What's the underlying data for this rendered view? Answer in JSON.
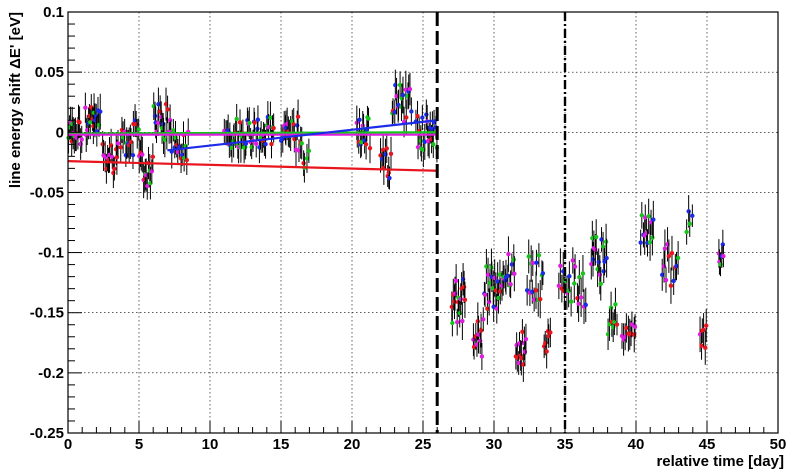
{
  "chart_data": {
    "type": "scatter",
    "title": "",
    "xlabel": "relative time [day]",
    "ylabel": "line energy shift ΔE' [eV]",
    "xlim": [
      0,
      50
    ],
    "ylim": [
      -0.25,
      0.1
    ],
    "x_ticks": [
      0,
      5,
      10,
      15,
      20,
      25,
      30,
      35,
      40,
      45,
      50
    ],
    "y_ticks": [
      -0.25,
      -0.2,
      -0.15,
      -0.1,
      -0.05,
      0,
      0.05,
      0.1
    ],
    "x_tick_labels": [
      "0",
      "5",
      "10",
      "15",
      "20",
      "25",
      "30",
      "35",
      "40",
      "45",
      "50"
    ],
    "y_tick_labels": [
      "-0.25",
      "-0.2",
      "-0.15",
      "-0.1",
      "-0.05",
      "0",
      "0.05",
      "0.1"
    ],
    "grid": true,
    "legend": "none",
    "series_colors": {
      "red": "#e8141e",
      "green": "#16c41c",
      "blue": "#1b2be8",
      "magenta": "#e01be0",
      "errorbar": "#000000"
    },
    "vertical_lines": [
      {
        "x": 26.0,
        "style": "dashed"
      },
      {
        "x": 35.0,
        "style": "dash-dot"
      }
    ],
    "fit_lines": [
      {
        "color": "red",
        "x": [
          0,
          26
        ],
        "y": [
          -0.024,
          -0.032
        ]
      },
      {
        "color": "green",
        "x": [
          0,
          26
        ],
        "y": [
          -0.001,
          0.0
        ]
      },
      {
        "color": "magenta",
        "x": [
          0,
          26
        ],
        "y": [
          -0.002,
          -0.002
        ]
      },
      {
        "color": "blue",
        "x": [
          7,
          26
        ],
        "y": [
          -0.015,
          0.01
        ]
      }
    ],
    "clusters": [
      {
        "x": [
          0.0,
          1.0
        ],
        "y": 0.0,
        "spread": 0.012,
        "err": 0.012,
        "n": 14,
        "colors": [
          "red",
          "magenta",
          "green"
        ]
      },
      {
        "x": [
          1.2,
          2.3
        ],
        "y": 0.008,
        "spread": 0.014,
        "err": 0.013,
        "n": 16,
        "colors": [
          "magenta",
          "green",
          "red",
          "blue"
        ]
      },
      {
        "x": [
          2.4,
          3.6
        ],
        "y": -0.02,
        "spread": 0.014,
        "err": 0.012,
        "n": 14,
        "colors": [
          "red",
          "magenta"
        ]
      },
      {
        "x": [
          3.7,
          5.0
        ],
        "y": -0.005,
        "spread": 0.015,
        "err": 0.012,
        "n": 16,
        "colors": [
          "magenta",
          "blue",
          "green",
          "red"
        ]
      },
      {
        "x": [
          5.0,
          6.0
        ],
        "y": -0.03,
        "spread": 0.016,
        "err": 0.013,
        "n": 14,
        "colors": [
          "red",
          "green",
          "magenta"
        ]
      },
      {
        "x": [
          6.0,
          7.3
        ],
        "y": 0.008,
        "spread": 0.016,
        "err": 0.012,
        "n": 18,
        "colors": [
          "magenta",
          "green",
          "blue",
          "red"
        ]
      },
      {
        "x": [
          7.3,
          8.5
        ],
        "y": -0.01,
        "spread": 0.014,
        "err": 0.012,
        "n": 14,
        "colors": [
          "blue",
          "magenta",
          "green",
          "red"
        ]
      },
      {
        "x": [
          11.0,
          14.5
        ],
        "y": 0.0,
        "spread": 0.013,
        "err": 0.011,
        "n": 46,
        "colors": [
          "green",
          "green",
          "magenta",
          "red",
          "blue"
        ]
      },
      {
        "x": [
          15.0,
          16.5
        ],
        "y": -0.002,
        "spread": 0.016,
        "err": 0.012,
        "n": 18,
        "colors": [
          "magenta",
          "red",
          "green",
          "blue"
        ]
      },
      {
        "x": [
          16.5,
          17.0
        ],
        "y": -0.02,
        "spread": 0.01,
        "err": 0.01,
        "n": 4,
        "colors": [
          "red",
          "green"
        ]
      },
      {
        "x": [
          20.3,
          21.3
        ],
        "y": 0.0,
        "spread": 0.015,
        "err": 0.012,
        "n": 14,
        "colors": [
          "magenta",
          "green",
          "blue",
          "red"
        ]
      },
      {
        "x": [
          22.0,
          22.8
        ],
        "y": -0.025,
        "spread": 0.015,
        "err": 0.012,
        "n": 10,
        "colors": [
          "red",
          "blue"
        ]
      },
      {
        "x": [
          22.8,
          24.2
        ],
        "y": 0.025,
        "spread": 0.018,
        "err": 0.013,
        "n": 18,
        "colors": [
          "blue",
          "magenta",
          "green",
          "red"
        ]
      },
      {
        "x": [
          24.5,
          26.0
        ],
        "y": 0.0,
        "spread": 0.016,
        "err": 0.012,
        "n": 20,
        "colors": [
          "magenta",
          "red",
          "green",
          "blue"
        ]
      },
      {
        "x": [
          27.0,
          28.0
        ],
        "y": -0.14,
        "spread": 0.02,
        "err": 0.013,
        "n": 16,
        "colors": [
          "blue",
          "magenta",
          "red",
          "green"
        ]
      },
      {
        "x": [
          28.5,
          29.3
        ],
        "y": -0.17,
        "spread": 0.02,
        "err": 0.013,
        "n": 10,
        "colors": [
          "red",
          "magenta"
        ]
      },
      {
        "x": [
          29.3,
          30.5
        ],
        "y": -0.13,
        "spread": 0.02,
        "err": 0.013,
        "n": 18,
        "colors": [
          "magenta",
          "green",
          "blue",
          "red"
        ]
      },
      {
        "x": [
          30.5,
          31.5
        ],
        "y": -0.115,
        "spread": 0.015,
        "err": 0.012,
        "n": 12,
        "colors": [
          "green",
          "blue",
          "magenta"
        ]
      },
      {
        "x": [
          31.5,
          32.3
        ],
        "y": -0.18,
        "spread": 0.015,
        "err": 0.012,
        "n": 12,
        "colors": [
          "red",
          "magenta"
        ]
      },
      {
        "x": [
          32.3,
          33.5
        ],
        "y": -0.12,
        "spread": 0.02,
        "err": 0.013,
        "n": 14,
        "colors": [
          "blue",
          "green",
          "magenta",
          "red"
        ]
      },
      {
        "x": [
          33.5,
          34.0
        ],
        "y": -0.175,
        "spread": 0.01,
        "err": 0.012,
        "n": 6,
        "colors": [
          "red"
        ]
      },
      {
        "x": [
          34.5,
          36.5
        ],
        "y": -0.125,
        "spread": 0.02,
        "err": 0.013,
        "n": 20,
        "colors": [
          "magenta",
          "green",
          "blue",
          "red"
        ]
      },
      {
        "x": [
          36.8,
          38.0
        ],
        "y": -0.105,
        "spread": 0.022,
        "err": 0.013,
        "n": 16,
        "colors": [
          "blue",
          "magenta",
          "green"
        ]
      },
      {
        "x": [
          38.0,
          38.7
        ],
        "y": -0.155,
        "spread": 0.015,
        "err": 0.012,
        "n": 8,
        "colors": [
          "red",
          "green"
        ]
      },
      {
        "x": [
          39.0,
          40.0
        ],
        "y": -0.165,
        "spread": 0.01,
        "err": 0.012,
        "n": 10,
        "colors": [
          "red",
          "magenta"
        ]
      },
      {
        "x": [
          40.3,
          41.3
        ],
        "y": -0.08,
        "spread": 0.015,
        "err": 0.013,
        "n": 12,
        "colors": [
          "blue",
          "green",
          "magenta"
        ]
      },
      {
        "x": [
          41.8,
          43.0
        ],
        "y": -0.11,
        "spread": 0.018,
        "err": 0.013,
        "n": 12,
        "colors": [
          "magenta",
          "blue",
          "green",
          "red"
        ]
      },
      {
        "x": [
          43.5,
          44.0
        ],
        "y": -0.075,
        "spread": 0.01,
        "err": 0.012,
        "n": 4,
        "colors": [
          "green",
          "blue"
        ]
      },
      {
        "x": [
          44.5,
          45.0
        ],
        "y": -0.17,
        "spread": 0.01,
        "err": 0.012,
        "n": 6,
        "colors": [
          "red",
          "magenta"
        ]
      },
      {
        "x": [
          45.8,
          46.2
        ],
        "y": -0.1,
        "spread": 0.01,
        "err": 0.012,
        "n": 6,
        "colors": [
          "blue",
          "green",
          "magenta"
        ]
      }
    ]
  }
}
